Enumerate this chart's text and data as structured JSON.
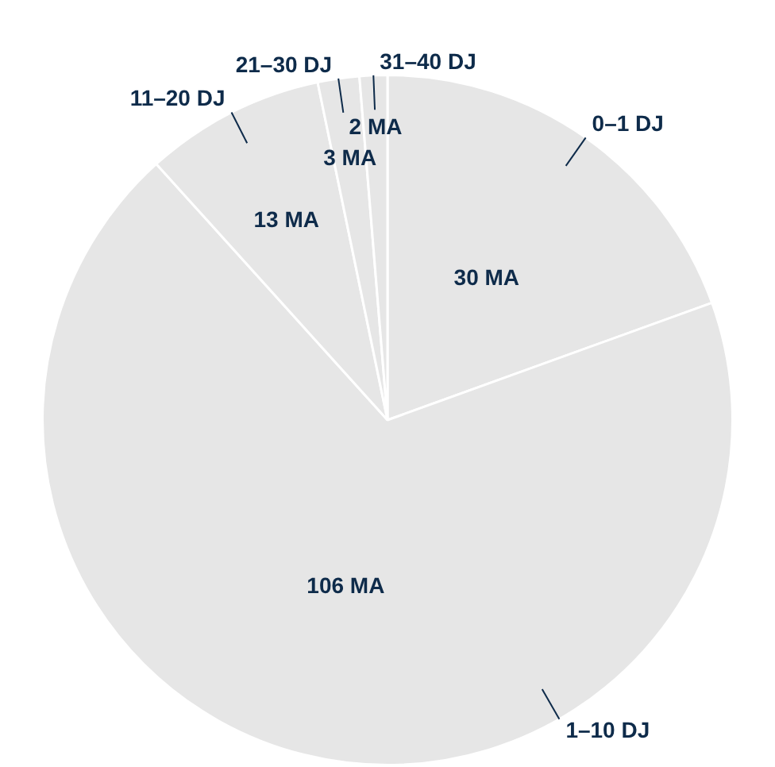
{
  "chart_data": {
    "type": "pie",
    "categories": [
      "0–1 DJ",
      "1–10 DJ",
      "11–20 DJ",
      "21–30 DJ",
      "31–40 DJ"
    ],
    "values": [
      30,
      106,
      13,
      3,
      2
    ],
    "colors": [
      "#e6e6e6",
      "#e6e6e6",
      "#e6e6e6",
      "#e6e6e6",
      "#e6e6e6"
    ],
    "value_labels": [
      "30 MA",
      "106 MA",
      "13 MA",
      "3 MA",
      "2 MA"
    ],
    "legend": false
  }
}
